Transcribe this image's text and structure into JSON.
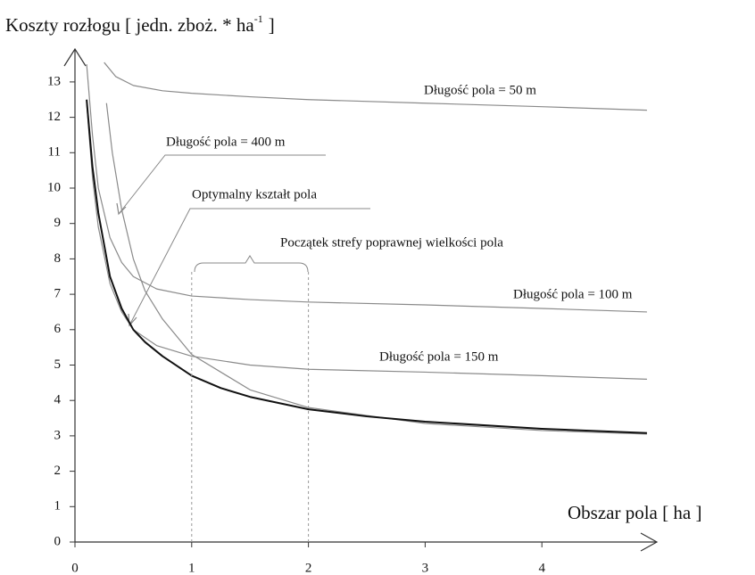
{
  "chart_data": {
    "type": "line",
    "ylabel": {
      "text": "Koszty rozłogu [ jedn. zboż. * ha",
      "sup": "-1",
      "end": "]"
    },
    "xlabel": "Obszar pola [ ha ]",
    "xlim": [
      0,
      5
    ],
    "ylim": [
      0,
      14
    ],
    "xticks": [
      0,
      1,
      2,
      3,
      4
    ],
    "yticks": [
      0,
      1,
      2,
      3,
      4,
      5,
      6,
      7,
      8,
      9,
      10,
      11,
      12,
      13
    ],
    "zone": [
      1,
      2
    ],
    "series": [
      {
        "name": "Długość pola = 50 m",
        "color": "#8a8a8a",
        "x": [
          0.25,
          0.35,
          0.5,
          0.75,
          1,
          1.5,
          2,
          3,
          4,
          4.9
        ],
        "values": [
          13.55,
          13.15,
          12.9,
          12.75,
          12.68,
          12.58,
          12.5,
          12.4,
          12.3,
          12.2
        ]
      },
      {
        "name": "Długość pola = 400 m",
        "color": "#8a8a8a",
        "x": [
          0.27,
          0.32,
          0.4,
          0.5,
          0.6,
          0.75,
          1,
          1.5,
          2,
          3,
          4,
          4.9
        ],
        "values": [
          12.4,
          11.0,
          9.4,
          8.0,
          7.1,
          6.3,
          5.3,
          4.3,
          3.8,
          3.35,
          3.15,
          3.05
        ]
      },
      {
        "name": "Długość pola = 100 m",
        "color": "#8a8a8a",
        "x": [
          0.1,
          0.15,
          0.2,
          0.3,
          0.4,
          0.5,
          0.7,
          1,
          1.5,
          2,
          3,
          4,
          4.9
        ],
        "values": [
          13.5,
          11.5,
          10.0,
          8.6,
          7.9,
          7.5,
          7.15,
          6.95,
          6.85,
          6.78,
          6.7,
          6.6,
          6.5
        ]
      },
      {
        "name": "Długość pola = 150 m",
        "color": "#8a8a8a",
        "x": [
          0.1,
          0.15,
          0.2,
          0.3,
          0.4,
          0.5,
          0.7,
          1,
          1.5,
          2,
          3,
          4,
          4.9
        ],
        "values": [
          12.4,
          10.3,
          8.9,
          7.3,
          6.5,
          6.0,
          5.55,
          5.25,
          5.0,
          4.88,
          4.8,
          4.7,
          4.6
        ]
      },
      {
        "name": "Optymalny kształt pola",
        "color": "#111111",
        "x": [
          0.1,
          0.15,
          0.2,
          0.3,
          0.4,
          0.5,
          0.6,
          0.75,
          1,
          1.25,
          1.5,
          2,
          2.5,
          3,
          4,
          4.9
        ],
        "values": [
          12.5,
          10.6,
          9.3,
          7.5,
          6.6,
          6.0,
          5.65,
          5.25,
          4.7,
          4.35,
          4.1,
          3.75,
          3.55,
          3.4,
          3.2,
          3.08
        ]
      }
    ],
    "annotations": [
      "Początek strefy poprawnej wielkości pola"
    ]
  }
}
